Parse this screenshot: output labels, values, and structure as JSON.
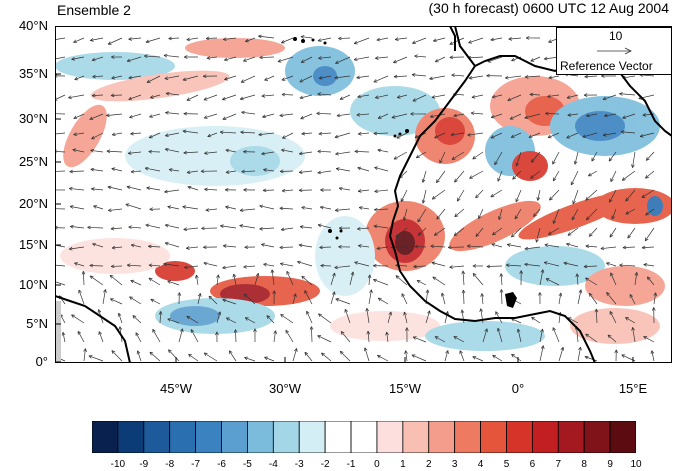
{
  "header": {
    "left_title": "Ensemble 2",
    "right_title": "(30 h forecast) 0600 UTC 12 Aug 2004"
  },
  "map": {
    "lat_labels": [
      "40°N",
      "35°N",
      "30°N",
      "25°N",
      "20°N",
      "15°N",
      "10°N",
      "5°N",
      "0°"
    ],
    "lon_labels": [
      "45°W",
      "30°W",
      "15°W",
      "0°",
      "15°E"
    ],
    "ocean_shade": "#ffffff",
    "land_outline_color": "#000000"
  },
  "reference_vector": {
    "magnitude": "10",
    "label": "Reference Vector"
  },
  "colorbar": {
    "labels": [
      "-10",
      "-9",
      "-8",
      "-7",
      "-6",
      "-5",
      "-4",
      "-3",
      "-2",
      "-1",
      "0",
      "1",
      "2",
      "3",
      "4",
      "5",
      "6",
      "7",
      "8",
      "9",
      "10"
    ],
    "colors": [
      "#08214e",
      "#0c3c78",
      "#1c5a9c",
      "#2a6fb0",
      "#3b82c0",
      "#5a9fcf",
      "#7bbcdc",
      "#a3d6e6",
      "#d4eef6",
      "#ffffff",
      "#ffffff",
      "#fde0dd",
      "#f9bfb3",
      "#f59d8c",
      "#ee7a62",
      "#e5553c",
      "#d63428",
      "#c21f22",
      "#a41920",
      "#80121a",
      "#5c0b10"
    ]
  }
}
